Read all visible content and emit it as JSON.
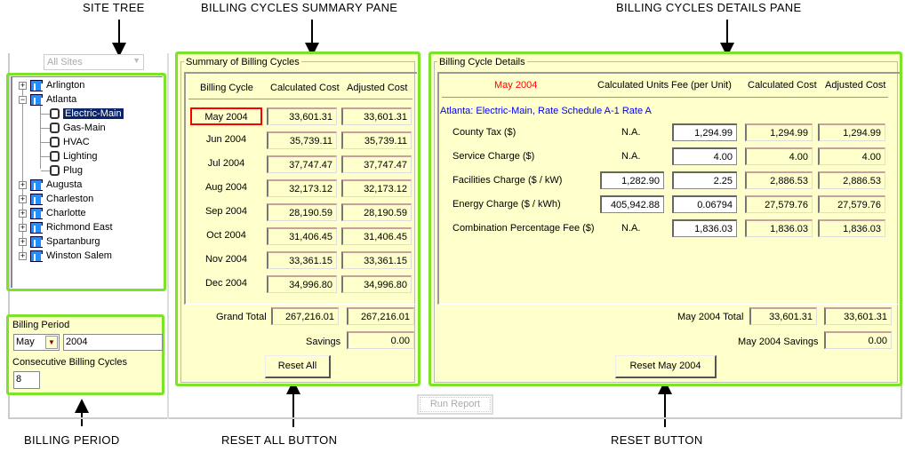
{
  "annotations": {
    "site_tree": "SITE TREE",
    "summary_pane": "BILLING CYCLES SUMMARY PANE",
    "details_pane": "BILLING CYCLES DETAILS PANE",
    "billing_period": "BILLING PERIOD",
    "reset_all": "RESET ALL BUTTON",
    "reset": "RESET BUTTON"
  },
  "colors": {
    "highlight": "#7be42a",
    "pane_bg": "#ffffcc",
    "selected_month": "#ff0000",
    "rate_schedule": "#0000ff",
    "selection_box": "#ff0000"
  },
  "site_select": {
    "value": "All Sites"
  },
  "tree": [
    {
      "label": "Arlington",
      "type": "site",
      "expanded": false
    },
    {
      "label": "Atlanta",
      "type": "site",
      "expanded": true
    },
    {
      "label": "Electric-Main",
      "type": "meter",
      "selected": true
    },
    {
      "label": "Gas-Main",
      "type": "meter"
    },
    {
      "label": "HVAC",
      "type": "meter"
    },
    {
      "label": "Lighting",
      "type": "meter"
    },
    {
      "label": "Plug",
      "type": "meter"
    },
    {
      "label": "Augusta",
      "type": "site",
      "expanded": false
    },
    {
      "label": "Charleston",
      "type": "site",
      "expanded": false
    },
    {
      "label": "Charlotte",
      "type": "site",
      "expanded": false
    },
    {
      "label": "Richmond East",
      "type": "site",
      "expanded": false
    },
    {
      "label": "Spartanburg",
      "type": "site",
      "expanded": false
    },
    {
      "label": "Winston Salem",
      "type": "site",
      "expanded": false
    }
  ],
  "billing_period": {
    "title": "Billing Period",
    "month": "May",
    "year": "2004",
    "cycles_label": "Consecutive Billing Cycles",
    "cycles": "8"
  },
  "summary": {
    "title": "Summary of Billing Cycles",
    "headers": [
      "Billing Cycle",
      "Calculated Cost",
      "Adjusted Cost"
    ],
    "rows": [
      {
        "cycle": "May 2004",
        "calc": "33,601.31",
        "adj": "33,601.31",
        "selected": true
      },
      {
        "cycle": "Jun 2004",
        "calc": "35,739.11",
        "adj": "35,739.11"
      },
      {
        "cycle": "Jul 2004",
        "calc": "37,747.47",
        "adj": "37,747.47"
      },
      {
        "cycle": "Aug 2004",
        "calc": "32,173.12",
        "adj": "32,173.12"
      },
      {
        "cycle": "Sep 2004",
        "calc": "28,190.59",
        "adj": "28,190.59"
      },
      {
        "cycle": "Oct 2004",
        "calc": "31,406.45",
        "adj": "31,406.45"
      },
      {
        "cycle": "Nov 2004",
        "calc": "33,361.15",
        "adj": "33,361.15"
      },
      {
        "cycle": "Dec 2004",
        "calc": "34,996.80",
        "adj": "34,996.80"
      }
    ],
    "grand_total_label": "Grand Total",
    "grand_total_calc": "267,216.01",
    "grand_total_adj": "267,216.01",
    "savings_label": "Savings",
    "savings": "0.00",
    "reset_all": "Reset All"
  },
  "details": {
    "title": "Billing Cycle Details",
    "month": "May 2004",
    "headers": [
      "Calculated Units",
      "Fee (per Unit)",
      "Calculated Cost",
      "Adjusted Cost"
    ],
    "rate_schedule": "Atlanta: Electric-Main, Rate Schedule A-1 Rate A",
    "rows": [
      {
        "label": "County Tax  ($)",
        "units": "N.A.",
        "fee": "1,294.99",
        "calc": "1,294.99",
        "adj": "1,294.99"
      },
      {
        "label": "Service Charge  ($)",
        "units": "N.A.",
        "fee": "4.00",
        "calc": "4.00",
        "adj": "4.00"
      },
      {
        "label": "Facilities Charge  ($ / kW)",
        "units": "1,282.90",
        "fee": "2.25",
        "calc": "2,886.53",
        "adj": "2,886.53"
      },
      {
        "label": "Energy Charge  ($ / kWh)",
        "units": "405,942.88",
        "fee": "0.06794",
        "calc": "27,579.76",
        "adj": "27,579.76"
      },
      {
        "label": "Combination Percentage Fee  ($)",
        "units": "N.A.",
        "fee": "1,836.03",
        "calc": "1,836.03",
        "adj": "1,836.03"
      }
    ],
    "total_label": "May 2004 Total",
    "total_calc": "33,601.31",
    "total_adj": "33,601.31",
    "savings_label": "May 2004 Savings",
    "savings": "0.00",
    "reset": "Reset May 2004"
  },
  "run_report": "Run Report"
}
